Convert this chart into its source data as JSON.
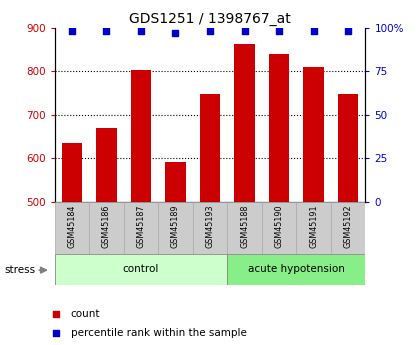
{
  "title": "GDS1251 / 1398767_at",
  "samples": [
    "GSM45184",
    "GSM45186",
    "GSM45187",
    "GSM45189",
    "GSM45193",
    "GSM45188",
    "GSM45190",
    "GSM45191",
    "GSM45192"
  ],
  "counts": [
    635,
    670,
    803,
    592,
    748,
    862,
    840,
    810,
    748
  ],
  "percentiles": [
    98,
    98,
    98,
    97,
    98,
    98,
    98,
    98,
    98
  ],
  "ylim_left": [
    500,
    900
  ],
  "ylim_right": [
    0,
    100
  ],
  "yticks_left": [
    500,
    600,
    700,
    800,
    900
  ],
  "yticks_right": [
    0,
    25,
    50,
    75,
    100
  ],
  "ytick_right_labels": [
    "0",
    "25",
    "50",
    "75",
    "100%"
  ],
  "bar_color": "#cc0000",
  "dot_color": "#0000cc",
  "tick_color_left": "#cc0000",
  "tick_color_right": "#0000cc",
  "stress_label": "stress",
  "bar_width": 0.6,
  "groups_info": [
    {
      "label": "control",
      "start": 0,
      "end": 4,
      "color": "#ccffcc"
    },
    {
      "label": "acute hypotension",
      "start": 5,
      "end": 8,
      "color": "#88ee88"
    }
  ],
  "legend_items": [
    {
      "label": "count",
      "color": "#cc0000"
    },
    {
      "label": "percentile rank within the sample",
      "color": "#0000cc"
    }
  ],
  "figsize": [
    4.2,
    3.45
  ],
  "dpi": 100
}
